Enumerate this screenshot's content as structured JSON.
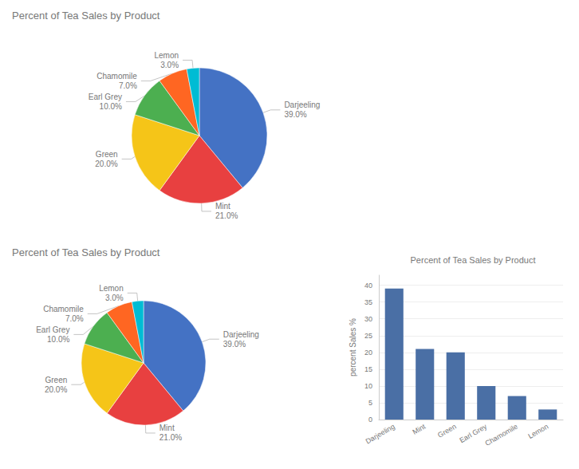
{
  "chart_data": [
    {
      "type": "pie",
      "title": "Percent of Tea Sales by Product",
      "categories": [
        "Darjeeling",
        "Mint",
        "Green",
        "Earl Grey",
        "Chamomile",
        "Lemon"
      ],
      "values": [
        39.0,
        21.0,
        20.0,
        10.0,
        7.0,
        3.0
      ],
      "value_labels": [
        "39.0%",
        "21.0%",
        "20.0%",
        "10.0%",
        "7.0%",
        "3.0%"
      ],
      "colors": [
        "#4472C4",
        "#E84040",
        "#F5C518",
        "#4CAF50",
        "#FF6622",
        "#00BCD4"
      ]
    },
    {
      "type": "pie",
      "title": "Percent of Tea Sales by Product",
      "categories": [
        "Darjeeling",
        "Mint",
        "Green",
        "Earl Grey",
        "Chamomile",
        "Lemon"
      ],
      "values": [
        39.0,
        21.0,
        20.0,
        10.0,
        7.0,
        3.0
      ],
      "value_labels": [
        "39.0%",
        "21.0%",
        "20.0%",
        "10.0%",
        "7.0%",
        "3.0%"
      ],
      "colors": [
        "#4472C4",
        "#E84040",
        "#F5C518",
        "#4CAF50",
        "#FF6622",
        "#00BCD4"
      ]
    },
    {
      "type": "bar",
      "title": "Percent of Tea Sales by Product",
      "categories": [
        "Darjeeling",
        "Mint",
        "Green",
        "Earl Grey",
        "Chamomile",
        "Lemon"
      ],
      "values": [
        39.0,
        21.0,
        20.0,
        10.0,
        7.0,
        3.0
      ],
      "color": "#4A6FA5",
      "ylabel": "percent Sales %",
      "ylim": [
        0,
        43
      ],
      "yticks": [
        0,
        5,
        10,
        15,
        20,
        25,
        30,
        35,
        40
      ],
      "grid": true
    }
  ]
}
